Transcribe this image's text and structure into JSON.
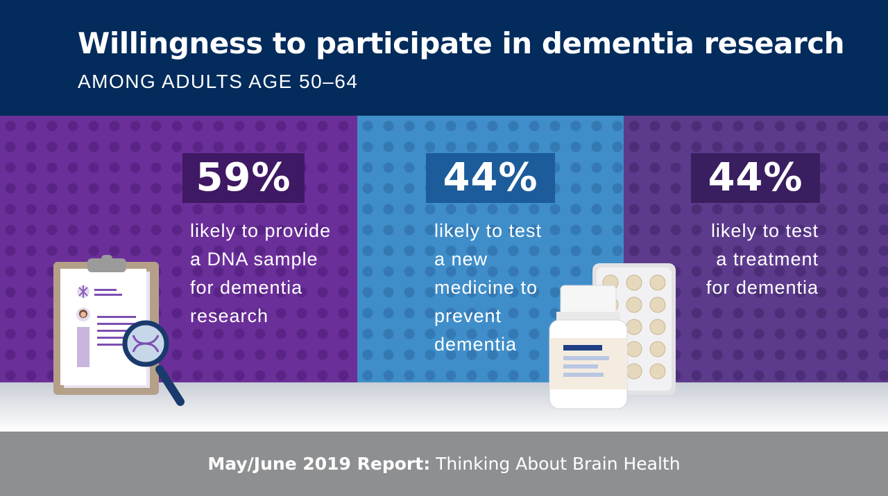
{
  "header": {
    "title": "Willingness to participate in dementia research",
    "subtitle": "AMONG ADULTS AGE 50–64"
  },
  "stats": [
    {
      "value": "59%",
      "lines": [
        "likely to provide",
        "a DNA sample",
        "for dementia",
        "research"
      ]
    },
    {
      "value": "44%",
      "lines": [
        "likely to test",
        "a new",
        "medicine to",
        "prevent",
        "dementia"
      ]
    },
    {
      "value": "44%",
      "lines": [
        "likely to test",
        "a treatment",
        "for dementia"
      ]
    }
  ],
  "footer": {
    "bold": "May/June 2019 Report:",
    "regular": "Thinking About Brain Health"
  },
  "colors": {
    "header_bg": "#032b5c",
    "panel_purple": "#6b2f9a",
    "panel_blue": "#3f8ec9",
    "panel_violet": "#5c3b8c",
    "footer_bg": "#8d8f91"
  },
  "icons": {
    "left": "clipboard-with-magnifier-dna-icon",
    "right": "medicine-bottle-and-blister-pack-icon"
  }
}
